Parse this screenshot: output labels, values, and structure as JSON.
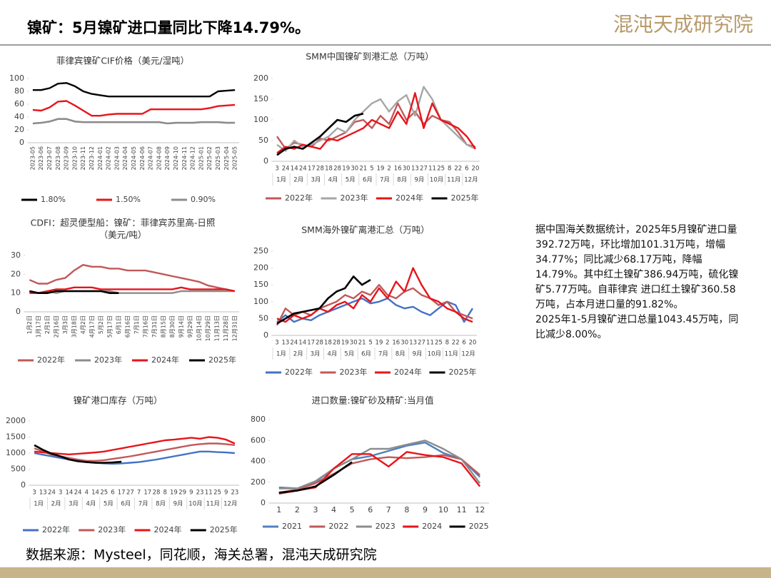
{
  "header": {
    "title": "镍矿：5月镍矿进口量同比下降14.79%。",
    "logo": "混沌天成研究院"
  },
  "commentary": [
    "据中国海关数据统计，2025年5月镍矿进口量392.72万吨，环比增加101.31万吨，增幅34.77%；同比减少68.17万吨，降幅14.79%。其中红土镍矿386.94万吨，硫化镍矿5.77万吨。自菲律宾 进口红土镍矿360.58万吨，占本月进口量的91.82%。",
    "2025年1-5月镍矿进口总量1043.45万吨，同比减少8.00%。"
  ],
  "source": "数据来源：Mysteel，同花顺，海关总署，混沌天成研究院",
  "chart_data": [
    {
      "type": "line",
      "title": "菲律宾镍矿CIF价格（美元/湿吨）",
      "categories": [
        "2023-05",
        "2023-06",
        "2023-07",
        "2023-08",
        "2023-09",
        "2023-10",
        "2023-11",
        "2023-12",
        "2024-01",
        "2024-02",
        "2024-03",
        "2024-04",
        "2024-05",
        "2024-06",
        "2024-07",
        "2024-08",
        "2024-09",
        "2024-10",
        "2024-11",
        "2024-12",
        "2025-01",
        "2025-02",
        "2025-03",
        "2025-04",
        "2025-05"
      ],
      "series": [
        {
          "name": "1.80%",
          "color": "#000000",
          "values": [
            82,
            82,
            85,
            92,
            93,
            88,
            80,
            76,
            74,
            72,
            72,
            72,
            72,
            72,
            72,
            72,
            72,
            72,
            72,
            72,
            72,
            72,
            80,
            81,
            82
          ]
        },
        {
          "name": "1.50%",
          "color": "#e8141a",
          "values": [
            51,
            50,
            55,
            64,
            65,
            58,
            50,
            42,
            42,
            44,
            45,
            45,
            45,
            45,
            52,
            52,
            52,
            52,
            52,
            52,
            52,
            54,
            57,
            58,
            59
          ]
        },
        {
          "name": "0.90%",
          "color": "#8c8c8c",
          "values": [
            30,
            31,
            33,
            37,
            37,
            33,
            32,
            32,
            32,
            32,
            32,
            32,
            32,
            32,
            32,
            32,
            30,
            31,
            31,
            31,
            32,
            32,
            32,
            31,
            31
          ]
        }
      ],
      "ylim": [
        0,
        100
      ],
      "yticks": [
        0,
        20,
        40,
        60,
        80,
        100
      ]
    },
    {
      "type": "line",
      "title": "SMM中国镍矿到港汇总（万吨）",
      "categories": [
        "3",
        "24",
        "14",
        "24",
        "17",
        "28",
        "18",
        "28",
        "19",
        "30",
        "21",
        "5",
        "19",
        "2",
        "16",
        "30",
        "13",
        "27",
        "11",
        "25",
        "8",
        "22",
        "6",
        "20"
      ],
      "month_labels": [
        "1月",
        "2月",
        "3月",
        "4月",
        "5月",
        "6月",
        "7月",
        "8月",
        "9月",
        "10月",
        "11月",
        "12月"
      ],
      "series": [
        {
          "name": "2022年",
          "color": "#c0595a",
          "values": [
            60,
            30,
            45,
            40,
            35,
            55,
            50,
            60,
            70,
            95,
            100,
            80,
            110,
            90,
            140,
            100,
            120,
            90,
            110,
            100,
            95,
            70,
            40,
            35
          ]
        },
        {
          "name": "2023年",
          "color": "#a6a6a6",
          "values": [
            40,
            25,
            50,
            35,
            40,
            50,
            60,
            80,
            70,
            100,
            120,
            140,
            150,
            120,
            145,
            160,
            110,
            180,
            150,
            100,
            80,
            60,
            40,
            30
          ]
        },
        {
          "name": "2024年",
          "color": "#e8141a",
          "values": [
            20,
            35,
            30,
            40,
            35,
            30,
            55,
            50,
            60,
            70,
            80,
            100,
            90,
            80,
            120,
            90,
            165,
            80,
            140,
            100,
            90,
            80,
            60,
            30
          ]
        },
        {
          "name": "2025年",
          "color": "#000000",
          "values": [
            15,
            30,
            35,
            30,
            45,
            60,
            80,
            100,
            95,
            110,
            115,
            null,
            null,
            null,
            null,
            null,
            null,
            null,
            null,
            null,
            null,
            null,
            null,
            null
          ]
        }
      ],
      "ylim": [
        0,
        200
      ],
      "yticks": [
        0,
        50,
        100,
        150,
        200
      ]
    },
    {
      "type": "line",
      "title": "CDFI：超灵便型船：镍矿：菲律宾苏里高-日照",
      "subtitle": "（美元/吨）",
      "categories": [
        "1月2日",
        "1月17日",
        "2月1日",
        "2月16日",
        "3月3日",
        "3月18日",
        "4月2日",
        "4月17日",
        "5月2日",
        "5月17日",
        "6月1日",
        "6月16日",
        "7月1日",
        "7月16日",
        "7月31日",
        "8月15日",
        "8月30日",
        "9月14日",
        "9月29日",
        "10月14日",
        "10月29日",
        "11月13日",
        "11月28日",
        "12月31日"
      ],
      "series": [
        {
          "name": "2022年",
          "color": "#c0595a",
          "values": [
            17,
            15,
            15,
            17,
            18,
            22,
            25,
            24,
            24,
            23,
            23,
            22,
            22,
            22,
            21,
            20,
            19,
            18,
            17,
            16,
            14,
            13,
            12,
            11
          ]
        },
        {
          "name": "2023年",
          "color": "#8c8c8c",
          "values": [
            11,
            10,
            11,
            10,
            11,
            11,
            11,
            11,
            11,
            11,
            10,
            10,
            10,
            10,
            10,
            10,
            10,
            11,
            11,
            11,
            11,
            11,
            11,
            11
          ]
        },
        {
          "name": "2024年",
          "color": "#e8141a",
          "values": [
            10,
            10,
            11,
            12,
            12,
            13,
            13,
            13,
            12,
            12,
            12,
            12,
            12,
            12,
            12,
            12,
            12,
            13,
            12,
            12,
            12,
            12,
            12,
            11
          ]
        },
        {
          "name": "2025年",
          "color": "#000000",
          "values": [
            11,
            10,
            10,
            11,
            11,
            11,
            11,
            11,
            11,
            10,
            10,
            null,
            null,
            null,
            null,
            null,
            null,
            null,
            null,
            null,
            null,
            null,
            null,
            null
          ]
        }
      ],
      "ylim": [
        0,
        30
      ],
      "yticks": [
        0,
        10,
        20,
        30
      ]
    },
    {
      "type": "line",
      "title": "SMM海外镍矿离港汇总（万吨）",
      "categories": [
        "3",
        "13",
        "24",
        "14",
        "17",
        "28",
        "18",
        "28",
        "19",
        "30",
        "21",
        "5",
        "19",
        "2",
        "16",
        "30",
        "13",
        "27",
        "11",
        "25",
        "8",
        "22",
        "6",
        "20"
      ],
      "month_labels": [
        "1月",
        "2月",
        "3月",
        "4月",
        "5月",
        "6月",
        "7月",
        "8月",
        "9月",
        "10月",
        "11月",
        "12月"
      ],
      "series": [
        {
          "name": "2022年",
          "color": "#4472c4",
          "values": [
            40,
            60,
            40,
            50,
            45,
            60,
            70,
            80,
            90,
            100,
            110,
            95,
            100,
            110,
            90,
            80,
            85,
            70,
            60,
            80,
            100,
            90,
            40,
            80
          ]
        },
        {
          "name": "2023年",
          "color": "#c0595a",
          "values": [
            30,
            80,
            60,
            70,
            60,
            80,
            90,
            100,
            120,
            110,
            130,
            120,
            150,
            120,
            110,
            130,
            140,
            120,
            110,
            90,
            100,
            70,
            60,
            50
          ]
        },
        {
          "name": "2024年",
          "color": "#e8141a",
          "values": [
            50,
            40,
            60,
            50,
            60,
            80,
            70,
            90,
            100,
            80,
            120,
            100,
            140,
            110,
            160,
            130,
            200,
            150,
            110,
            100,
            80,
            70,
            50,
            40
          ]
        },
        {
          "name": "2025年",
          "color": "#000000",
          "values": [
            35,
            50,
            65,
            70,
            75,
            80,
            110,
            130,
            140,
            175,
            150,
            165,
            null,
            null,
            null,
            null,
            null,
            null,
            null,
            null,
            null,
            null,
            null,
            null
          ]
        }
      ],
      "ylim": [
        0,
        250
      ],
      "yticks": [
        0,
        50,
        100,
        150,
        200,
        250
      ]
    },
    {
      "type": "line",
      "title": "镍矿港口库存（万吨）",
      "categories": [
        "3",
        "13",
        "24",
        "3",
        "14",
        "24",
        "4",
        "14",
        "25",
        "6",
        "17",
        "27",
        "7",
        "17",
        "28",
        "8",
        "19",
        "29",
        "9",
        "23",
        "11",
        "25",
        "9",
        "23"
      ],
      "month_labels": [
        "1月",
        "2月",
        "3月",
        "4月",
        "5月",
        "6月",
        "7月",
        "8月",
        "9月",
        "10月",
        "11月",
        "12月"
      ],
      "series": [
        {
          "name": "2022年",
          "color": "#4472c4",
          "values": [
            1000,
            950,
            900,
            850,
            800,
            750,
            720,
            700,
            680,
            670,
            680,
            700,
            720,
            760,
            800,
            850,
            900,
            950,
            1000,
            1050,
            1050,
            1030,
            1020,
            1000
          ]
        },
        {
          "name": "2023年",
          "color": "#c0595a",
          "values": [
            1150,
            1050,
            950,
            900,
            850,
            800,
            760,
            760,
            780,
            820,
            860,
            900,
            950,
            1000,
            1050,
            1100,
            1150,
            1200,
            1250,
            1280,
            1300,
            1300,
            1280,
            1250
          ]
        },
        {
          "name": "2024年",
          "color": "#e8141a",
          "values": [
            1050,
            1020,
            1000,
            980,
            960,
            980,
            1000,
            1020,
            1050,
            1100,
            1150,
            1200,
            1250,
            1300,
            1350,
            1400,
            1420,
            1450,
            1480,
            1450,
            1500,
            1480,
            1420,
            1300
          ]
        },
        {
          "name": "2025年",
          "color": "#000000",
          "values": [
            1250,
            1100,
            980,
            900,
            800,
            750,
            720,
            700,
            700,
            710,
            730,
            null,
            null,
            null,
            null,
            null,
            null,
            null,
            null,
            null,
            null,
            null,
            null,
            null
          ]
        }
      ],
      "ylim": [
        0,
        2000
      ],
      "yticks": [
        0,
        500,
        1000,
        1500,
        2000
      ]
    },
    {
      "type": "line",
      "title": "进口数量:镍矿砂及精矿:当月值",
      "categories": [
        "1",
        "2",
        "3",
        "4",
        "5",
        "6",
        "7",
        "8",
        "9",
        "10",
        "11",
        "12"
      ],
      "series": [
        {
          "name": "2021",
          "color": "#4f81bd",
          "values": [
            150,
            140,
            200,
            330,
            420,
            450,
            500,
            550,
            580,
            480,
            420,
            250
          ]
        },
        {
          "name": "2022",
          "color": "#c0595a",
          "values": [
            100,
            130,
            190,
            280,
            380,
            420,
            440,
            430,
            440,
            460,
            420,
            270
          ]
        },
        {
          "name": "2023",
          "color": "#8c8c8c",
          "values": [
            140,
            140,
            210,
            330,
            420,
            520,
            520,
            560,
            600,
            520,
            420,
            190
          ]
        },
        {
          "name": "2024",
          "color": "#e8141a",
          "values": [
            90,
            120,
            150,
            330,
            470,
            470,
            350,
            490,
            460,
            440,
            380,
            160
          ]
        },
        {
          "name": "2025",
          "color": "#000000",
          "values": [
            100,
            120,
            160,
            270,
            392.72,
            null,
            null,
            null,
            null,
            null,
            null,
            null
          ]
        }
      ],
      "ylim": [
        0,
        800
      ],
      "yticks": [
        0,
        200,
        400,
        600,
        800
      ]
    }
  ]
}
